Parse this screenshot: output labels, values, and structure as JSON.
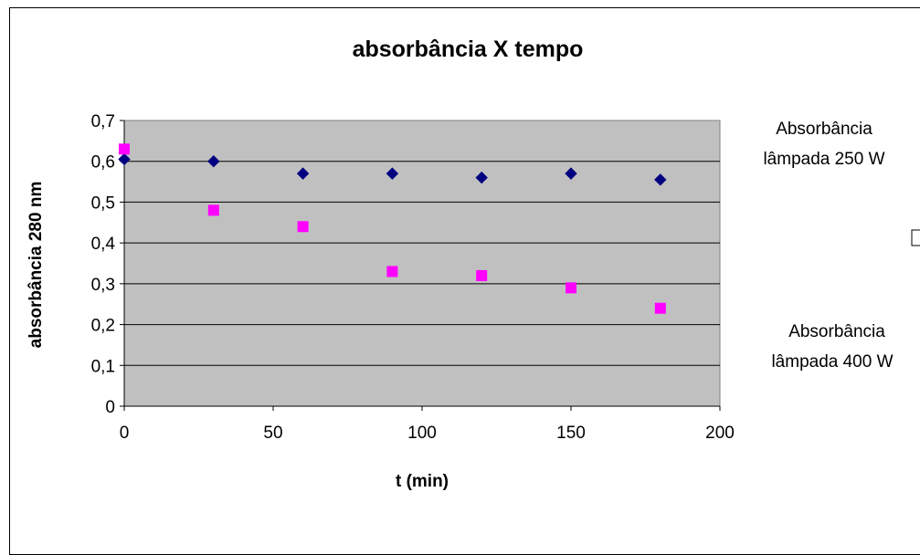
{
  "chart_data": {
    "type": "scatter",
    "title": "absorbância X tempo",
    "xlabel": "t (min)",
    "ylabel": "absorbância 280 nm",
    "xlim": [
      0,
      200
    ],
    "ylim": [
      0,
      0.7
    ],
    "x_ticks": [
      "0",
      "50",
      "100",
      "150",
      "200"
    ],
    "y_ticks": [
      "0",
      "0,1",
      "0,2",
      "0,3",
      "0,4",
      "0,5",
      "0,6",
      "0,7"
    ],
    "grid": true,
    "plot_background": "#C0C0C0",
    "legend_position": "right",
    "series": [
      {
        "name_lines": [
          "Absorbância",
          "lâmpada 250 W"
        ],
        "marker": "diamond",
        "color": "#000080",
        "x": [
          0,
          30,
          60,
          90,
          120,
          150,
          180
        ],
        "y": [
          0.605,
          0.6,
          0.57,
          0.57,
          0.56,
          0.57,
          0.555
        ]
      },
      {
        "name_lines": [
          "Absorbância",
          "lâmpada 400 W"
        ],
        "marker": "square",
        "color": "#FF00FF",
        "x": [
          0,
          30,
          60,
          90,
          120,
          150,
          180
        ],
        "y": [
          0.63,
          0.48,
          0.44,
          0.33,
          0.32,
          0.29,
          0.24
        ]
      }
    ]
  }
}
